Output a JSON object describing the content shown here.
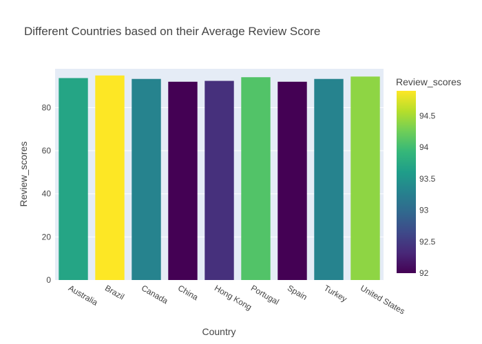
{
  "chart_data": {
    "type": "bar",
    "title": "Different Countries based on their Average Review Score",
    "xlabel": "Country",
    "ylabel": "Review_scores",
    "categories": [
      "Australia",
      "Brazil",
      "Canada",
      "China",
      "Hong Kong",
      "Portugal",
      "Spain",
      "Turkey",
      "United States"
    ],
    "values": [
      93.7,
      94.9,
      93.3,
      92.0,
      92.4,
      94.1,
      92.0,
      93.3,
      94.4
    ],
    "ylim": [
      0,
      98
    ],
    "yticks": [
      0,
      20,
      40,
      60,
      80
    ],
    "grid": true,
    "colorbar": {
      "title": "Review_scores",
      "range": [
        92.0,
        94.9
      ],
      "ticks": [
        "92",
        "92.5",
        "93",
        "93.5",
        "94",
        "94.5"
      ],
      "colorscale": "viridis"
    },
    "colors": {
      "plot_background": "#e5ecf6",
      "gridline": "#ffffff",
      "text": "#444444"
    }
  }
}
